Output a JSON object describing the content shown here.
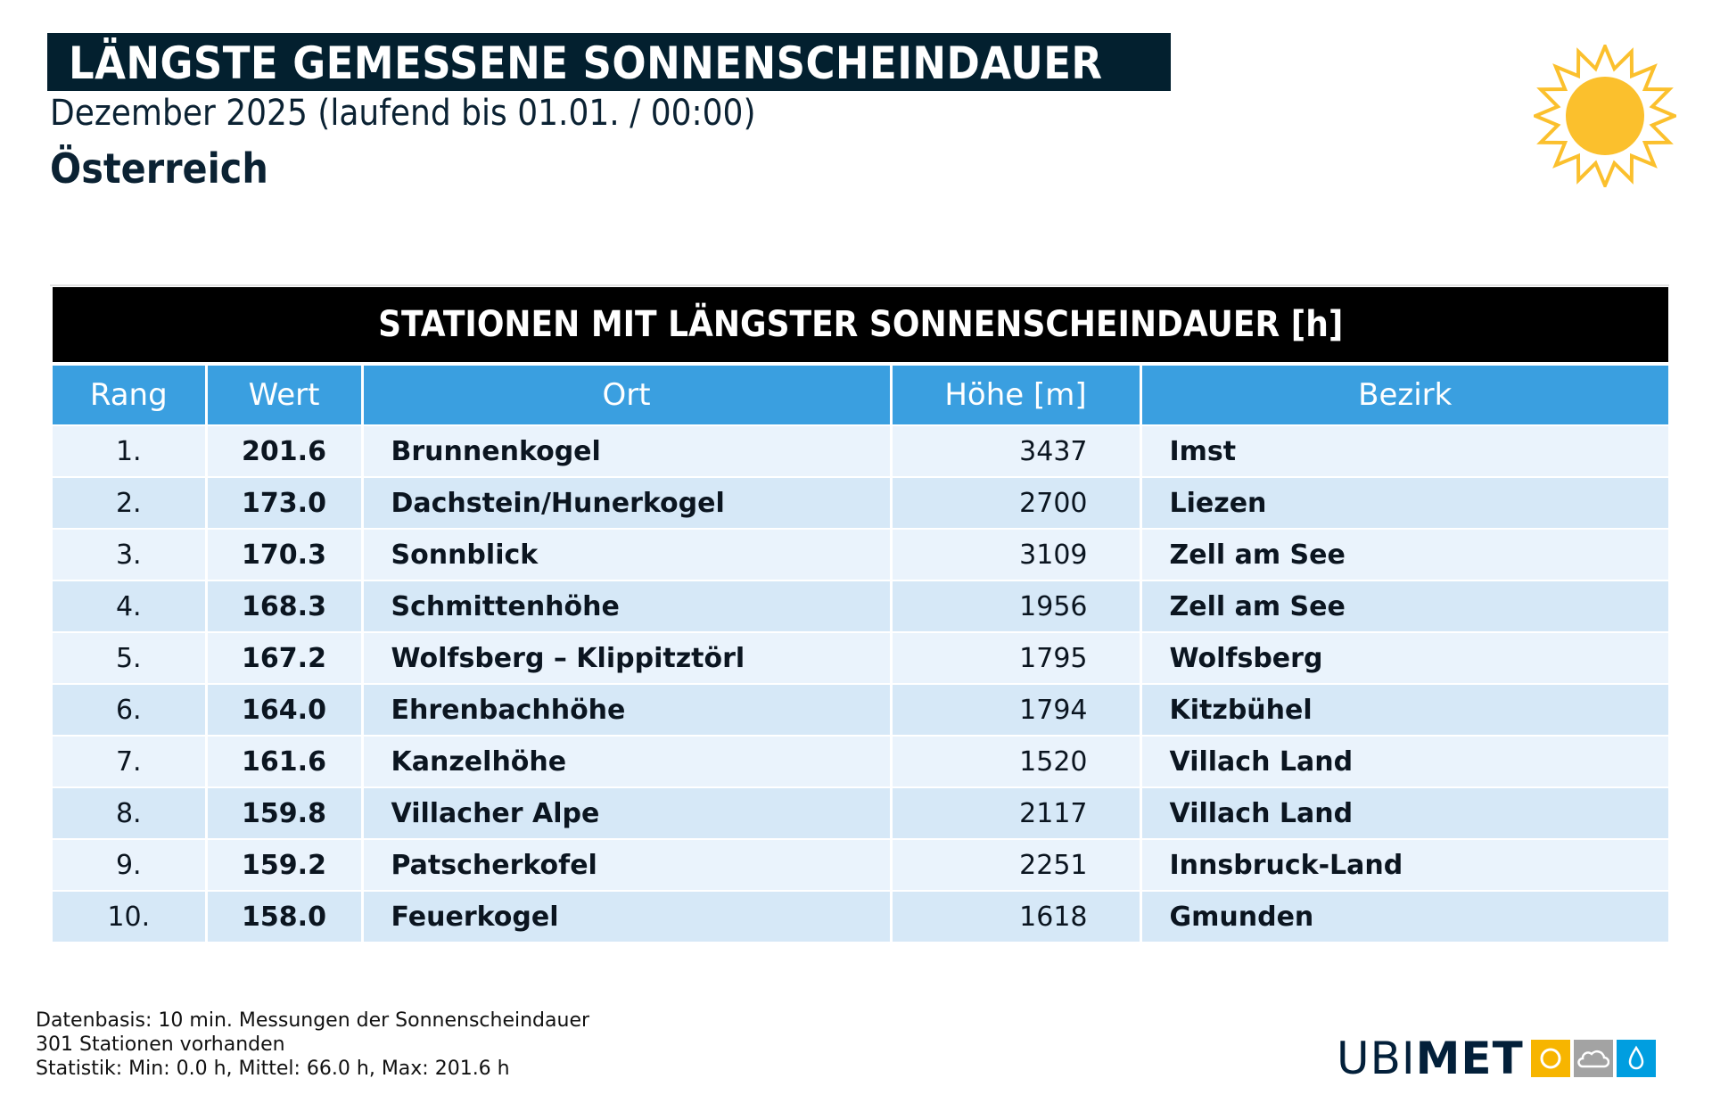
{
  "header": {
    "title": "LÄNGSTE GEMESSENE SONNENSCHEINDAUER",
    "subtitle": "Dezember 2025 (laufend bis 01.01. / 00:00)",
    "region": "Österreich",
    "icon": "sun-icon"
  },
  "table": {
    "title": "STATIONEN MIT LÄNGSTER SONNENSCHEINDAUER [h]",
    "columns": [
      "Rang",
      "Wert",
      "Ort",
      "Höhe [m]",
      "Bezirk"
    ],
    "rows": [
      [
        "1.",
        "201.6",
        "Brunnenkogel",
        "3437",
        "Imst"
      ],
      [
        "2.",
        "173.0",
        "Dachstein/Hunerkogel",
        "2700",
        "Liezen"
      ],
      [
        "3.",
        "170.3",
        "Sonnblick",
        "3109",
        "Zell am See"
      ],
      [
        "4.",
        "168.3",
        "Schmittenhöhe",
        "1956",
        "Zell am See"
      ],
      [
        "5.",
        "167.2",
        "Wolfsberg – Klippitztörl",
        "1795",
        "Wolfsberg"
      ],
      [
        "6.",
        "164.0",
        "Ehrenbachhöhe",
        "1794",
        "Kitzbühel"
      ],
      [
        "7.",
        "161.6",
        "Kanzelhöhe",
        "1520",
        "Villach Land"
      ],
      [
        "8.",
        "159.8",
        "Villacher Alpe",
        "2117",
        "Villach Land"
      ],
      [
        "9.",
        "159.2",
        "Patscherkofel",
        "2251",
        "Innsbruck-Land"
      ],
      [
        "10.",
        "158.0",
        "Feuerkogel",
        "1618",
        "Gmunden"
      ]
    ]
  },
  "footer": {
    "lines": [
      "Datenbasis: 10 min. Messungen der Sonnenscheindauer",
      "301 Stationen vorhanden",
      "Statistik: Min: 0.0 h, Mittel: 66.0 h, Max: 201.6 h"
    ]
  },
  "logo": {
    "text_light": "UBI",
    "text_bold": "MET",
    "colors": {
      "sun": "#f7b500",
      "cloud": "#a3a3a3",
      "drop": "#009ee0",
      "text": "#03203a"
    }
  },
  "colors": {
    "title_bg": "#03202f",
    "table_header": "#3a9fe0",
    "row_light": "#eaf3fc",
    "row_dark": "#d6e8f7",
    "sun": "#fbc02d"
  }
}
